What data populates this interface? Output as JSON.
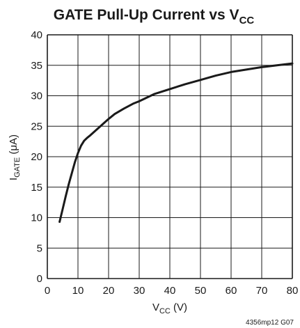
{
  "chart_data": {
    "type": "line",
    "title": {
      "main": "GATE Pull-Up Current vs V",
      "sub": "CC"
    },
    "xlabel": {
      "main": "V",
      "sub": "CC",
      "rest": " (V)"
    },
    "ylabel": {
      "main": "I",
      "sub": "GATE",
      "rest": " (μA)"
    },
    "xlim": [
      0,
      80
    ],
    "ylim": [
      0,
      40
    ],
    "xticks": [
      "0",
      "10",
      "20",
      "30",
      "40",
      "50",
      "60",
      "70",
      "80"
    ],
    "yticks": [
      "0",
      "5",
      "10",
      "15",
      "20",
      "25",
      "30",
      "35",
      "40"
    ],
    "grid": true,
    "series": [
      {
        "x": [
          4,
          5,
          6,
          7,
          8,
          9,
          10,
          11,
          12,
          13,
          14,
          16,
          18,
          20,
          22,
          25,
          28,
          30,
          35,
          40,
          45,
          50,
          55,
          60,
          65,
          70,
          75,
          80
        ],
        "y": [
          9.3,
          11.4,
          13.5,
          15.5,
          17.3,
          19.1,
          20.6,
          21.8,
          22.6,
          23.1,
          23.5,
          24.4,
          25.3,
          26.2,
          27.0,
          27.9,
          28.7,
          29.1,
          30.3,
          31.1,
          31.9,
          32.6,
          33.3,
          33.9,
          34.3,
          34.7,
          35.0,
          35.3
        ],
        "color": "#1a1a1a"
      }
    ]
  },
  "figure_code": "4356mp12 G07"
}
